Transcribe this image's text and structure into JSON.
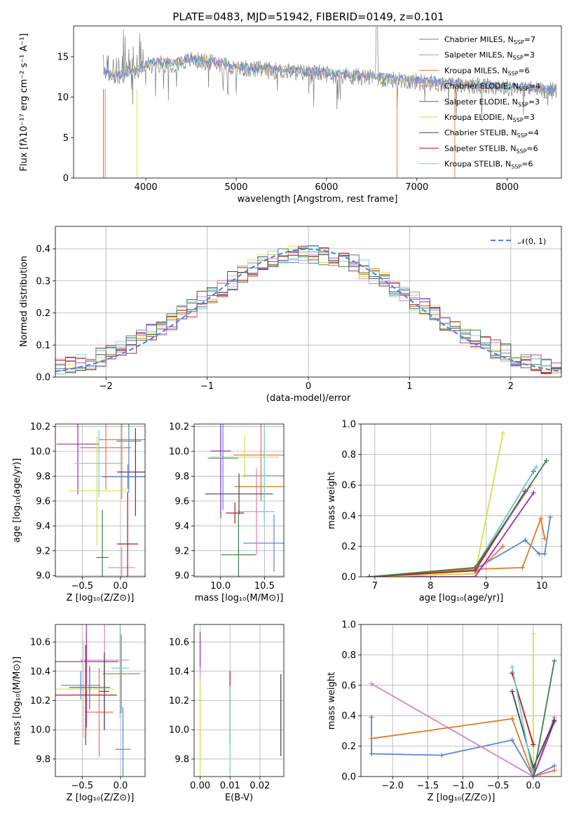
{
  "colors": {
    "Chabrier MILES": "#5b86d6",
    "Salpeter MILES": "#e07fbe",
    "Kroupa MILES": "#e07a23",
    "Chabrier ELODIE": "#f06f4f",
    "Salpeter ELODIE": "#9b2fb5",
    "Kroupa ELODIE": "#d8df4a",
    "Chabrier STELIB": "#444444",
    "Salpeter STELIB": "#b41818",
    "Kroupa STELIB": "#6fd3dc",
    "Kroupa STELIB-dark": "#3f7d4a"
  },
  "chart_data": [
    {
      "type": "line",
      "title": "PLATE=0483, MJD=51942, FIBERID=0149, z=0.101",
      "xlabel": "wavelength [Angstrom, rest frame]",
      "ylabel": "Flux [fλ10⁻¹⁷ erg cm⁻² s⁻¹ A⁻¹]",
      "xlim": [
        3200,
        8600
      ],
      "ylim": [
        0,
        18.8
      ],
      "xticks": [
        4000,
        5000,
        6000,
        7000,
        8000
      ],
      "yticks": [
        0,
        5,
        10,
        15
      ],
      "legend": [
        {
          "name": "Chabrier MILES, N",
          "sub": "SSP",
          "n": "=7"
        },
        {
          "name": "Salpeter MILES, N",
          "sub": "SSP",
          "n": "=3"
        },
        {
          "name": "Kroupa MILES, N",
          "sub": "SSP",
          "n": "=6"
        },
        {
          "name": "Chabrier ELODIE, N",
          "sub": "SSP",
          "n": "=4"
        },
        {
          "name": "Salpeter ELODIE, N",
          "sub": "SSP",
          "n": "=3"
        },
        {
          "name": "Kroupa ELODIE, N",
          "sub": "SSP",
          "n": "=3"
        },
        {
          "name": "Chabrier STELIB, N",
          "sub": "SSP",
          "n": "=4"
        },
        {
          "name": "Salpeter STELIB, N",
          "sub": "SSP",
          "n": "=6"
        },
        {
          "name": "Kroupa STELIB, N",
          "sub": "SSP",
          "n": "=6"
        }
      ],
      "legend_placement": "upper-right",
      "spectrum_shape": [
        [
          3530,
          13.0
        ],
        [
          3700,
          12.5
        ],
        [
          3900,
          13.2
        ],
        [
          4100,
          14.2
        ],
        [
          4300,
          14.0
        ],
        [
          4500,
          14.6
        ],
        [
          4800,
          14.2
        ],
        [
          5000,
          13.6
        ],
        [
          5500,
          13.2
        ],
        [
          6000,
          12.9
        ],
        [
          6500,
          12.4
        ],
        [
          7000,
          11.9
        ],
        [
          7500,
          11.5
        ],
        [
          8000,
          11.2
        ],
        [
          8500,
          10.8
        ]
      ]
    },
    {
      "type": "step",
      "xlabel": "(data-model)/error",
      "ylabel": "Normed distribution",
      "xlim": [
        -2.5,
        2.5
      ],
      "ylim": [
        0,
        0.47
      ],
      "xticks": [
        -2,
        -1,
        0,
        1,
        2
      ],
      "yticks": [
        0.0,
        0.1,
        0.2,
        0.3,
        0.4
      ],
      "legend": "𝒩(0, 1)",
      "legend_placement": "upper-right",
      "grid": true
    },
    {
      "type": "errorbar",
      "xlabel": "Z [log₁₀(Z/Z⊙)]",
      "ylabel": "age  [log₁₀(age/yr)]",
      "xlim": [
        -0.85,
        0.32
      ],
      "ylim": [
        8.99,
        10.22
      ],
      "xticks": [
        -0.5,
        0.0
      ],
      "yticks": [
        9.0,
        9.2,
        9.4,
        9.6,
        9.8,
        10.0,
        10.2
      ],
      "grid": true
    },
    {
      "type": "errorbar",
      "xlabel": "mass [log₁₀(M/M⊙)]",
      "ylabel": "",
      "xlim": [
        9.7,
        10.72
      ],
      "ylim": [
        8.99,
        10.22
      ],
      "xticks": [
        10.0,
        10.5
      ],
      "yticks": [
        9.0,
        9.2,
        9.4,
        9.6,
        9.8,
        10.0,
        10.2
      ],
      "grid": true
    },
    {
      "type": "line",
      "xlabel": "age  [log₁₀(age/yr)]",
      "ylabel": "mass weight",
      "xlim": [
        6.75,
        10.35
      ],
      "ylim": [
        0,
        1.0
      ],
      "xticks": [
        7,
        8,
        9,
        10
      ],
      "yticks": [
        0.0,
        0.2,
        0.4,
        0.6,
        0.8,
        1.0
      ],
      "grid": true
    },
    {
      "type": "errorbar",
      "xlabel": "Z [log₁₀(Z/Z⊙)]",
      "ylabel": "mass [log₁₀(M/M⊙)]",
      "xlim": [
        -0.85,
        0.32
      ],
      "ylim": [
        9.68,
        10.72
      ],
      "xticks": [
        -0.5,
        0.0
      ],
      "yticks": [
        9.8,
        10.0,
        10.2,
        10.4,
        10.6
      ],
      "grid": true
    },
    {
      "type": "errorbar",
      "xlabel": "E(B-V)",
      "ylabel": "",
      "xlim": [
        -0.002,
        0.028
      ],
      "ylim": [
        9.68,
        10.72
      ],
      "xticks": [
        0.0,
        0.01,
        0.02
      ],
      "yticks": [
        9.8,
        10.0,
        10.2,
        10.4,
        10.6
      ],
      "grid": true
    },
    {
      "type": "line",
      "xlabel": "Z [log₁₀(Z/Z⊙)]",
      "ylabel": "mass weight",
      "xlim": [
        -2.45,
        0.4
      ],
      "ylim": [
        0,
        1.0
      ],
      "xticks": [
        -2.0,
        -1.5,
        -1.0,
        -0.5,
        0.0
      ],
      "yticks": [
        0.0,
        0.2,
        0.4,
        0.6,
        0.8,
        1.0
      ],
      "grid": true
    }
  ]
}
